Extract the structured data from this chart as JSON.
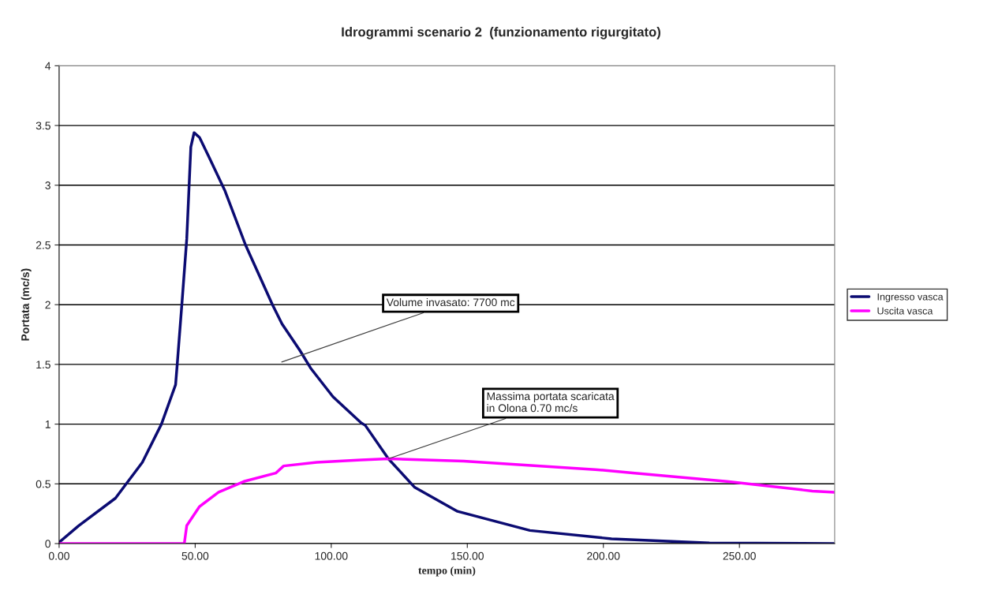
{
  "chart_data": {
    "type": "line",
    "title": "Idrogrammi scenario 2  (funzionamento rigurgitato)",
    "xlabel": "tempo (min)",
    "ylabel": "Portata (mc/s)",
    "xlim": [
      0,
      285
    ],
    "ylim": [
      0,
      4
    ],
    "xticks": [
      {
        "value": 0,
        "label": "0.00"
      },
      {
        "value": 50,
        "label": "50.00"
      },
      {
        "value": 100,
        "label": "100.00"
      },
      {
        "value": 150,
        "label": "150.00"
      },
      {
        "value": 200,
        "label": "200.00"
      },
      {
        "value": 250,
        "label": "250.00"
      }
    ],
    "yticks": [
      0,
      0.5,
      1,
      1.5,
      2,
      2.5,
      3,
      3.5,
      4
    ],
    "grid": "y",
    "legend": "right",
    "marker": "none",
    "line_style": "solid",
    "series": [
      {
        "name": "Ingresso vasca",
        "color": "#0b0b72",
        "x": [
          0,
          7.2,
          20.7,
          30.6,
          37.6,
          42.8,
          43.4,
          45.2,
          46.9,
          48.4,
          49.6,
          51.6,
          55,
          61,
          68.5,
          78.4,
          81.9,
          88.4,
          92.4,
          100.6,
          111,
          112.5,
          121,
          130.7,
          146.4,
          173,
          203,
          239,
          285
        ],
        "values": [
          0.01,
          0.15,
          0.38,
          0.68,
          1.0,
          1.33,
          1.5,
          2.03,
          2.55,
          3.32,
          3.44,
          3.4,
          3.24,
          2.95,
          2.5,
          2.0,
          1.84,
          1.62,
          1.47,
          1.23,
          1.01,
          0.99,
          0.71,
          0.47,
          0.27,
          0.11,
          0.04,
          0.005,
          0
        ]
      },
      {
        "name": "Uscita vasca",
        "color": "#ff00ff",
        "x": [
          0,
          46,
          46.9,
          51.6,
          58.6,
          67.9,
          79.6,
          82.5,
          94.7,
          111,
          121,
          148.7,
          197,
          211.6,
          245.4,
          276.8,
          285
        ],
        "values": [
          0,
          0,
          0.15,
          0.31,
          0.43,
          0.52,
          0.59,
          0.65,
          0.68,
          0.7,
          0.71,
          0.69,
          0.62,
          0.59,
          0.52,
          0.44,
          0.43
        ]
      }
    ],
    "annotations": [
      "Volume invasato: 7700 mc",
      {
        "text": "Massima portata scaricata\nin Olona 0.70 mc/s",
        "x": 121,
        "y": 0.71
      }
    ]
  }
}
